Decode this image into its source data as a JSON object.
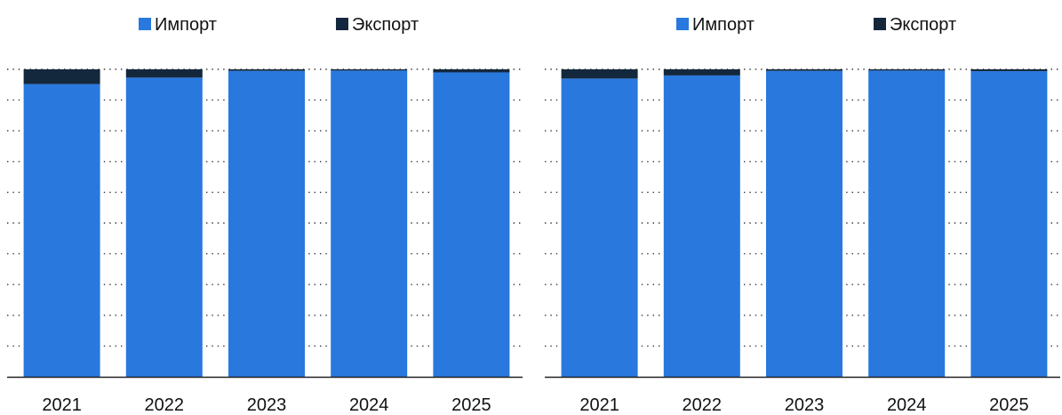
{
  "colors": {
    "import": "#2878de",
    "export": "#14283d",
    "grid": "#333333",
    "axis": "#222222"
  },
  "chart_data": [
    {
      "type": "bar",
      "stacked": true,
      "normalized_percent": true,
      "categories": [
        "2021",
        "2022",
        "2023",
        "2024",
        "2025"
      ],
      "series": [
        {
          "name": "Импорт",
          "values": [
            95.2,
            97.3,
            99.5,
            99.6,
            99.0
          ]
        },
        {
          "name": "Экспорт",
          "values": [
            4.8,
            2.7,
            0.5,
            0.4,
            1.0
          ]
        }
      ],
      "ylim": [
        0,
        100
      ],
      "grid": true,
      "legend": "top",
      "y_tick_labels": false
    },
    {
      "type": "bar",
      "stacked": true,
      "normalized_percent": true,
      "categories": [
        "2021",
        "2022",
        "2023",
        "2024",
        "2025"
      ],
      "series": [
        {
          "name": "Импорт",
          "values": [
            97.0,
            98.0,
            99.5,
            99.6,
            99.4
          ]
        },
        {
          "name": "Экспорт",
          "values": [
            3.0,
            2.0,
            0.5,
            0.4,
            0.6
          ]
        }
      ],
      "ylim": [
        0,
        100
      ],
      "grid": true,
      "legend": "top",
      "y_tick_labels": false
    }
  ]
}
